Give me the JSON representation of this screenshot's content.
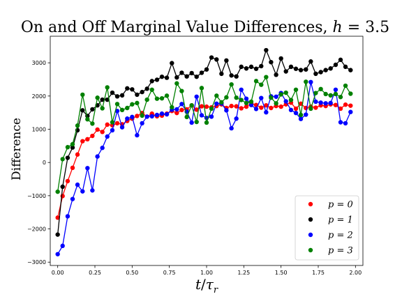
{
  "chart_data": {
    "type": "line",
    "title": "On and Off Marginal Value Differences, h = 3.5",
    "xlabel": "t/τ_r",
    "ylabel": "Difference",
    "xlim": [
      -0.05,
      2.05
    ],
    "ylim": [
      -3100,
      3800
    ],
    "xticks": [
      0.0,
      0.25,
      0.5,
      0.75,
      1.0,
      1.25,
      1.5,
      1.75,
      2.0
    ],
    "xtick_labels": [
      "0.00",
      "0.25",
      "0.50",
      "0.75",
      "1.00",
      "1.25",
      "1.50",
      "1.75",
      "2.00"
    ],
    "yticks": [
      -3000,
      -2000,
      -1000,
      0,
      1000,
      2000,
      3000
    ],
    "ytick_labels": [
      "−3000",
      "−2000",
      "−1000",
      "0",
      "1000",
      "2000",
      "3000"
    ],
    "grid": false,
    "legend_position": "bottom-right",
    "x": [
      0.0,
      0.033,
      0.067,
      0.1,
      0.133,
      0.167,
      0.2,
      0.233,
      0.267,
      0.3,
      0.333,
      0.367,
      0.4,
      0.433,
      0.467,
      0.5,
      0.533,
      0.567,
      0.6,
      0.633,
      0.667,
      0.7,
      0.733,
      0.767,
      0.8,
      0.833,
      0.867,
      0.9,
      0.933,
      0.967,
      1.0,
      1.033,
      1.067,
      1.1,
      1.133,
      1.167,
      1.2,
      1.233,
      1.267,
      1.3,
      1.333,
      1.367,
      1.4,
      1.433,
      1.467,
      1.5,
      1.533,
      1.567,
      1.6,
      1.633,
      1.667,
      1.7,
      1.733,
      1.767,
      1.8,
      1.833,
      1.867,
      1.9,
      1.933,
      1.967
    ],
    "series": [
      {
        "name": "p = 0",
        "color": "#ff0000",
        "values": [
          -1660,
          -1010,
          -560,
          -160,
          240,
          640,
          700,
          800,
          990,
          920,
          1140,
          1120,
          1180,
          1150,
          1250,
          1320,
          1400,
          1490,
          1380,
          1470,
          1390,
          1410,
          1470,
          1550,
          1490,
          1580,
          1600,
          1720,
          1590,
          1690,
          1680,
          1660,
          1700,
          1750,
          1640,
          1700,
          1690,
          1630,
          1680,
          1780,
          1730,
          1650,
          1720,
          1640,
          1700,
          1680,
          1750,
          1800,
          1620,
          1770,
          1640,
          1680,
          1650,
          1720,
          1700,
          1750,
          1730,
          1620,
          1740,
          1710
        ]
      },
      {
        "name": "p = 1",
        "color": "#000000",
        "values": [
          -2170,
          -730,
          140,
          450,
          970,
          1570,
          1400,
          1600,
          1720,
          1890,
          1890,
          2100,
          1990,
          2020,
          2230,
          2200,
          2040,
          2120,
          2220,
          2450,
          2490,
          2580,
          2550,
          2990,
          2560,
          2700,
          2590,
          2690,
          2580,
          2700,
          2800,
          3160,
          3100,
          2670,
          3070,
          2620,
          2590,
          2880,
          2830,
          2880,
          2820,
          2900,
          3380,
          3020,
          2640,
          3130,
          2740,
          2880,
          2820,
          2780,
          2800,
          3040,
          2670,
          2720,
          2780,
          2830,
          2940,
          3090,
          2880,
          2780
        ]
      },
      {
        "name": "p = 2",
        "color": "#0000ff",
        "values": [
          -2760,
          -2510,
          -1620,
          -1100,
          -670,
          -870,
          -170,
          -840,
          180,
          440,
          780,
          970,
          1550,
          1060,
          1320,
          1370,
          820,
          1180,
          1380,
          1390,
          1430,
          1470,
          1450,
          1590,
          1600,
          1760,
          1530,
          1200,
          1980,
          1420,
          1340,
          1380,
          1770,
          1780,
          1570,
          1030,
          1320,
          2190,
          1920,
          1730,
          1610,
          1940,
          1510,
          1990,
          1980,
          2090,
          1840,
          1580,
          1490,
          1310,
          1440,
          2420,
          1830,
          1800,
          1780,
          1790,
          2190,
          1210,
          1180,
          1520
        ]
      },
      {
        "name": "p = 3",
        "color": "#008000",
        "values": [
          -880,
          100,
          460,
          550,
          1110,
          2040,
          1300,
          1170,
          1950,
          1630,
          2260,
          1210,
          1760,
          1580,
          1640,
          1750,
          1790,
          1410,
          1890,
          2190,
          1920,
          1930,
          2010,
          1660,
          2380,
          2150,
          1370,
          1720,
          1220,
          2240,
          1200,
          1620,
          2010,
          1810,
          1960,
          2350,
          1950,
          1880,
          1790,
          1830,
          2450,
          2340,
          2570,
          1950,
          1780,
          2050,
          2100,
          1880,
          2190,
          1430,
          2430,
          1620,
          2090,
          2210,
          2060,
          2020,
          2060,
          1970,
          2310,
          2070
        ]
      }
    ]
  }
}
